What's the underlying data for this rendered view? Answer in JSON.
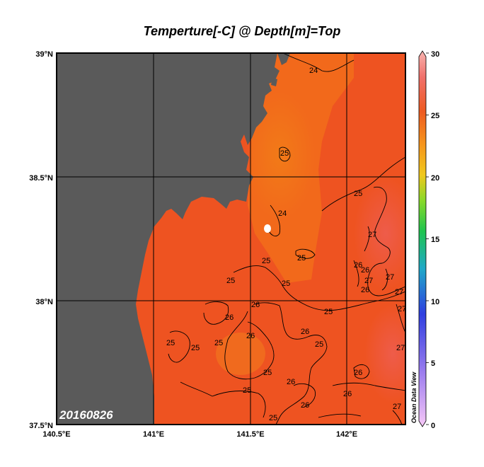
{
  "title": "Temperture[-C] @ Depth[m]=Top",
  "date_label": "20160826",
  "x_ticks": [
    "140.5°E",
    "141°E",
    "141.5°E",
    "142°E"
  ],
  "y_ticks": [
    "39°N",
    "38.5°N",
    "38°N",
    "37.5°N"
  ],
  "colorbar": {
    "ticks": [
      "30",
      "25",
      "20",
      "15",
      "10",
      "5",
      "0"
    ],
    "range": [
      0,
      30
    ],
    "watermark": "Ocean Data View"
  },
  "contour_labels": [
    "24",
    "24",
    "25",
    "25",
    "25",
    "25",
    "25",
    "25",
    "25",
    "25",
    "25",
    "25",
    "25",
    "25",
    "25",
    "25",
    "26",
    "26",
    "26",
    "26",
    "26",
    "26",
    "26",
    "26",
    "26",
    "26",
    "26",
    "27",
    "27",
    "27",
    "27",
    "27",
    "27",
    "27"
  ],
  "colors": {
    "land": "#5a5a5a",
    "sea_warm": "#ee5320",
    "sea_cool": "#f2711a",
    "sea_hot": "#ec4a2a"
  }
}
